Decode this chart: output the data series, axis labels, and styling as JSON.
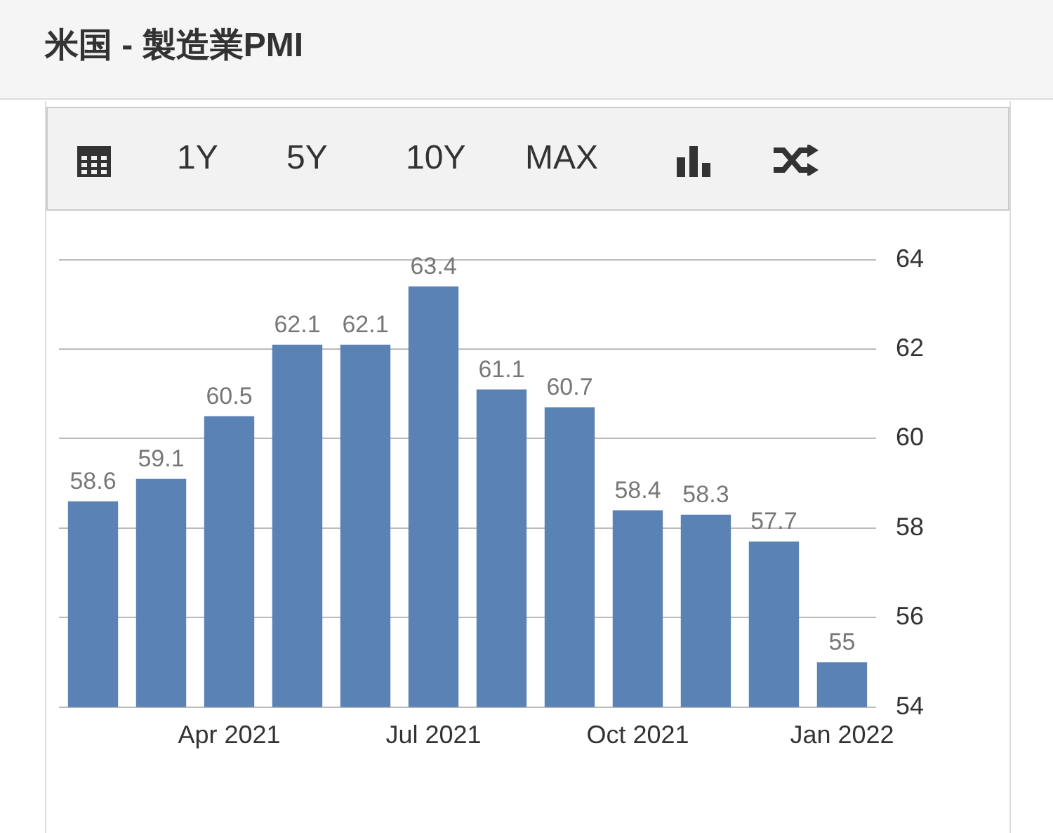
{
  "chart_data": {
    "type": "bar",
    "title": "米国 - 製造業PMI",
    "categories": [
      null,
      null,
      "Apr 2021",
      null,
      null,
      "Jul 2021",
      null,
      null,
      "Oct 2021",
      null,
      null,
      "Jan 2022"
    ],
    "values": [
      58.6,
      59.1,
      60.5,
      62.1,
      62.1,
      63.4,
      61.1,
      60.7,
      58.4,
      58.3,
      57.7,
      55
    ],
    "color": "#5b82b5",
    "ylim": [
      54,
      64
    ],
    "yticks": [
      54,
      56,
      58,
      60,
      62,
      64
    ],
    "grid": "y",
    "data_labels": true,
    "legend": false,
    "annotations": [
      "1Y",
      "5Y",
      "10Y",
      "MAX"
    ]
  }
}
